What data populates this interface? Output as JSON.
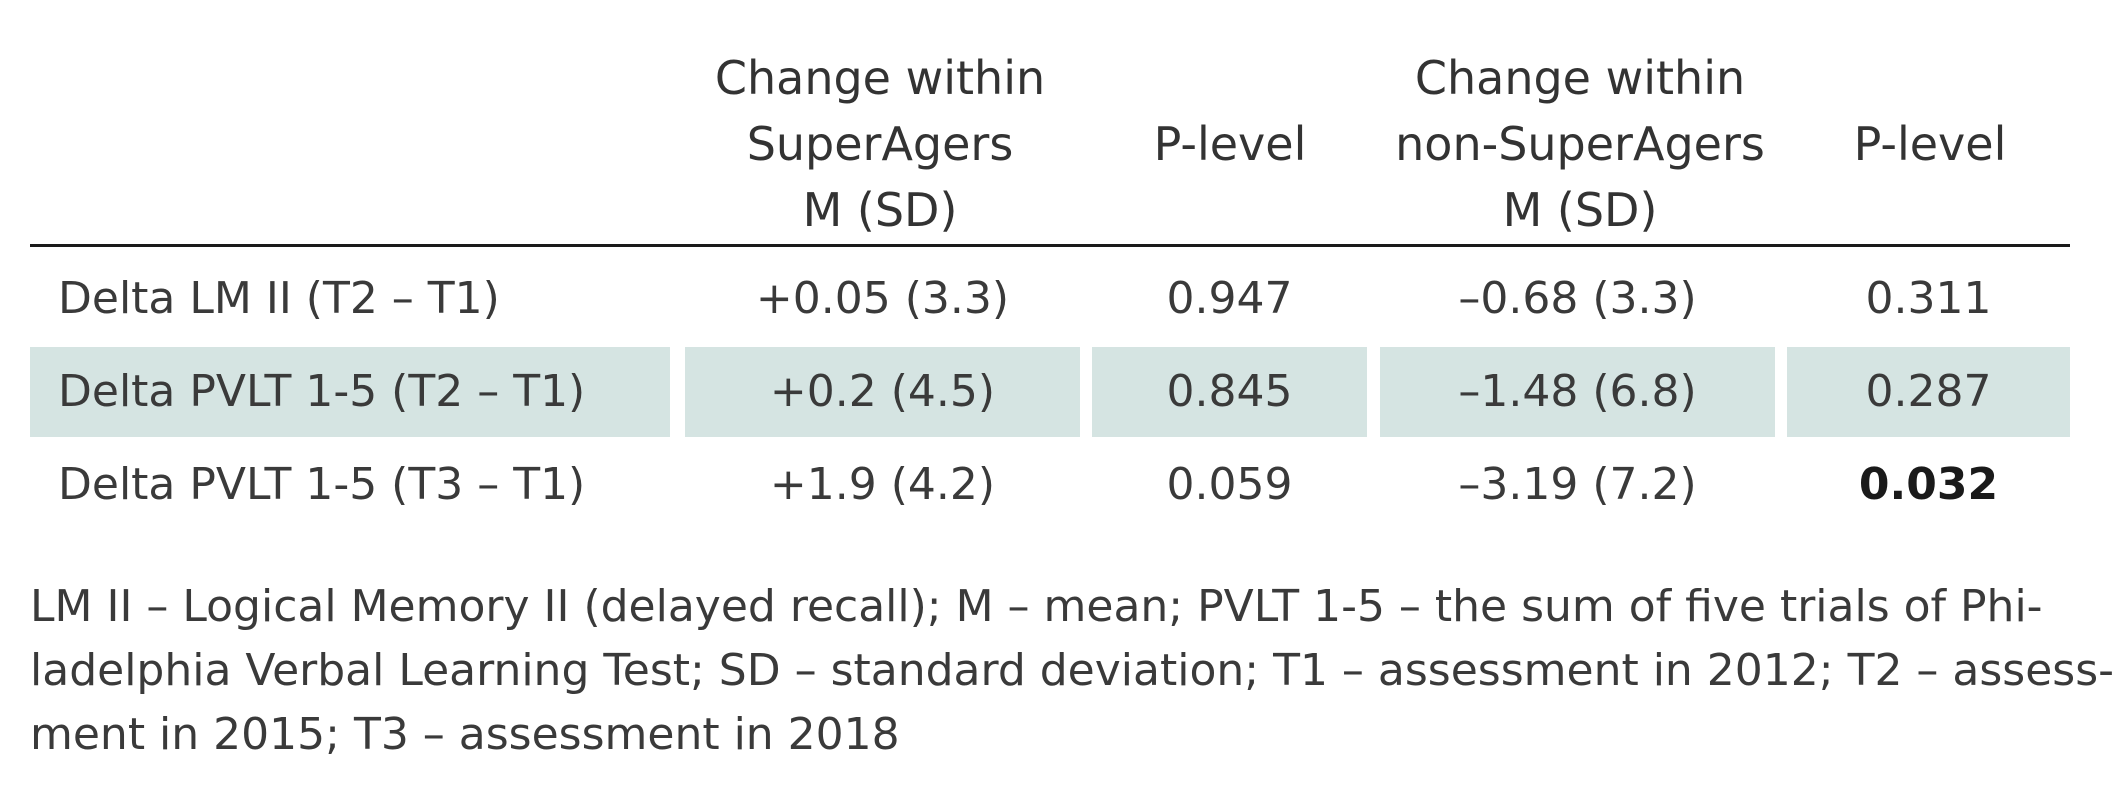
{
  "table": {
    "headers": [
      {
        "lines": [
          "Change within",
          "SuperAgers",
          "M (SD)"
        ]
      },
      {
        "lines": [
          "P-level"
        ]
      },
      {
        "lines": [
          "Change within",
          "non-SuperAgers",
          "M (SD)"
        ]
      },
      {
        "lines": [
          "P-level"
        ]
      }
    ],
    "rows": [
      {
        "label": "Delta LM II (T2 – T1)",
        "sa_change": "+0.05 (3.3)",
        "sa_p": "0.947",
        "nsa_change": "–0.68 (3.3)",
        "nsa_p": "0.311"
      },
      {
        "label": "Delta PVLT 1-5 (T2 – T1)",
        "sa_change": "+0.2 (4.5)",
        "sa_p": "0.845",
        "nsa_change": "–1.48 (6.8)",
        "nsa_p": "0.287"
      },
      {
        "label": "Delta PVLT 1-5 (T3 – T1)",
        "sa_change": "+1.9 (4.2)",
        "sa_p": "0.059",
        "nsa_change": "–3.19 (7.2)",
        "nsa_p": "0.032"
      }
    ],
    "shade_color": "#d5e4e2"
  },
  "footnote": {
    "lines": [
      "LM II –  Logical Memory II (delayed recall); M – mean; PVLT 1-5 – the sum of five trials of Phi-",
      "ladelphia Verbal Learning Test; SD – standard deviation; T1 – assessment in 2012; T2 – assess-",
      "ment in 2015; T3 – assessment in 2018"
    ]
  }
}
